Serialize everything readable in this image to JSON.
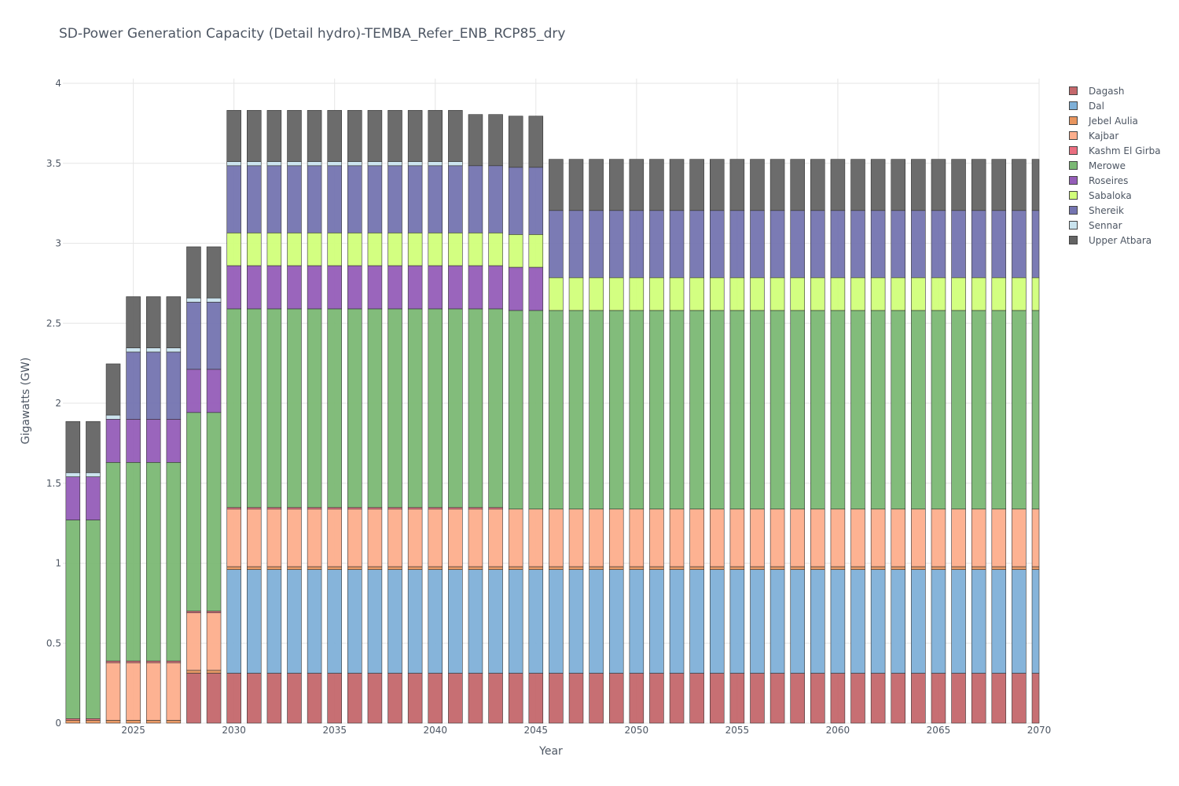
{
  "chart_data": {
    "type": "bar",
    "stacked": true,
    "title": "SD-Power Generation Capacity (Detail hydro)-TEMBA_Refer_ENB_RCP85_dry",
    "xlabel": "Year",
    "ylabel": "Gigawatts (GW)",
    "xlim": [
      2022,
      2070
    ],
    "ylim": [
      0,
      4
    ],
    "x_ticks": [
      "2025",
      "2030",
      "2035",
      "2040",
      "2045",
      "2050",
      "2055",
      "2060",
      "2065",
      "2070"
    ],
    "y_ticks": [
      "0",
      "0.5",
      "1",
      "1.5",
      "2",
      "2.5",
      "3",
      "3.5",
      "4"
    ],
    "grid": true,
    "legend_position": "right",
    "categories": [
      2022,
      2023,
      2024,
      2025,
      2026,
      2027,
      2028,
      2029,
      2030,
      2031,
      2032,
      2033,
      2034,
      2035,
      2036,
      2037,
      2038,
      2039,
      2040,
      2041,
      2042,
      2043,
      2044,
      2045,
      2046,
      2047,
      2048,
      2049,
      2050,
      2051,
      2052,
      2053,
      2054,
      2055,
      2056,
      2057,
      2058,
      2059,
      2060,
      2061,
      2062,
      2063,
      2064,
      2065,
      2066,
      2067,
      2068,
      2069,
      2070
    ],
    "series": [
      {
        "name": "Dagash",
        "color": "#c4676b",
        "values": [
          0,
          0,
          0,
          0,
          0,
          0,
          0.312,
          0.312,
          0.312,
          0.312,
          0.312,
          0.312,
          0.312,
          0.312,
          0.312,
          0.312,
          0.312,
          0.312,
          0.312,
          0.312,
          0.312,
          0.312,
          0.312,
          0.312,
          0.312,
          0.312,
          0.312,
          0.312,
          0.312,
          0.312,
          0.312,
          0.312,
          0.312,
          0.312,
          0.312,
          0.312,
          0.312,
          0.312,
          0.312,
          0.312,
          0.312,
          0.312,
          0.312,
          0.312,
          0.312,
          0.312,
          0.312,
          0.312,
          0.312
        ]
      },
      {
        "name": "Dal",
        "color": "#7fb0d8",
        "values": [
          0,
          0,
          0,
          0,
          0,
          0,
          0,
          0,
          0.648,
          0.648,
          0.648,
          0.648,
          0.648,
          0.648,
          0.648,
          0.648,
          0.648,
          0.648,
          0.648,
          0.648,
          0.648,
          0.648,
          0.648,
          0.648,
          0.648,
          0.648,
          0.648,
          0.648,
          0.648,
          0.648,
          0.648,
          0.648,
          0.648,
          0.648,
          0.648,
          0.648,
          0.648,
          0.648,
          0.648,
          0.648,
          0.648,
          0.648,
          0.648,
          0.648,
          0.648,
          0.648,
          0.648,
          0.648,
          0.648
        ]
      },
      {
        "name": "Jebel Aulia",
        "color": "#e8955e",
        "values": [
          0.018,
          0.018,
          0.018,
          0.018,
          0.018,
          0.018,
          0.018,
          0.018,
          0.018,
          0.018,
          0.018,
          0.018,
          0.018,
          0.018,
          0.018,
          0.018,
          0.018,
          0.018,
          0.018,
          0.018,
          0.018,
          0.018,
          0.018,
          0.018,
          0.018,
          0.018,
          0.018,
          0.018,
          0.018,
          0.018,
          0.018,
          0.018,
          0.018,
          0.018,
          0.018,
          0.018,
          0.018,
          0.018,
          0.018,
          0.018,
          0.018,
          0.018,
          0.018,
          0.018,
          0.018,
          0.018,
          0.018,
          0.018,
          0.018
        ]
      },
      {
        "name": "Kajbar",
        "color": "#fdae8c",
        "values": [
          0,
          0,
          0.36,
          0.36,
          0.36,
          0.36,
          0.36,
          0.36,
          0.36,
          0.36,
          0.36,
          0.36,
          0.36,
          0.36,
          0.36,
          0.36,
          0.36,
          0.36,
          0.36,
          0.36,
          0.36,
          0.36,
          0.36,
          0.36,
          0.36,
          0.36,
          0.36,
          0.36,
          0.36,
          0.36,
          0.36,
          0.36,
          0.36,
          0.36,
          0.36,
          0.36,
          0.36,
          0.36,
          0.36,
          0.36,
          0.36,
          0.36,
          0.36,
          0.36,
          0.36,
          0.36,
          0.36,
          0.36,
          0.36
        ]
      },
      {
        "name": "Kashm El Girba",
        "color": "#ea6e80",
        "values": [
          0.01,
          0.01,
          0.01,
          0.01,
          0.01,
          0.01,
          0.01,
          0.01,
          0.01,
          0.01,
          0.01,
          0.01,
          0.01,
          0.01,
          0.01,
          0.01,
          0.01,
          0.01,
          0.01,
          0.01,
          0.01,
          0.01,
          0,
          0,
          0,
          0,
          0,
          0,
          0,
          0,
          0,
          0,
          0,
          0,
          0,
          0,
          0,
          0,
          0,
          0,
          0,
          0,
          0,
          0,
          0,
          0,
          0,
          0,
          0
        ]
      },
      {
        "name": "Merowe",
        "color": "#7bb874",
        "values": [
          1.242,
          1.242,
          1.242,
          1.242,
          1.242,
          1.242,
          1.242,
          1.242,
          1.242,
          1.242,
          1.242,
          1.242,
          1.242,
          1.242,
          1.242,
          1.242,
          1.242,
          1.242,
          1.242,
          1.242,
          1.242,
          1.242,
          1.242,
          1.242,
          1.242,
          1.242,
          1.242,
          1.242,
          1.242,
          1.242,
          1.242,
          1.242,
          1.242,
          1.242,
          1.242,
          1.242,
          1.242,
          1.242,
          1.242,
          1.242,
          1.242,
          1.242,
          1.242,
          1.242,
          1.242,
          1.242,
          1.242,
          1.242,
          1.242
        ]
      },
      {
        "name": "Roseires",
        "color": "#955db8",
        "values": [
          0.27,
          0.27,
          0.27,
          0.27,
          0.27,
          0.27,
          0.27,
          0.27,
          0.27,
          0.27,
          0.27,
          0.27,
          0.27,
          0.27,
          0.27,
          0.27,
          0.27,
          0.27,
          0.27,
          0.27,
          0.27,
          0.27,
          0.27,
          0.27,
          0,
          0,
          0,
          0,
          0,
          0,
          0,
          0,
          0,
          0,
          0,
          0,
          0,
          0,
          0,
          0,
          0,
          0,
          0,
          0,
          0,
          0,
          0,
          0,
          0
        ]
      },
      {
        "name": "Sabaloka",
        "color": "#d1ff7a",
        "values": [
          0,
          0,
          0,
          0,
          0,
          0,
          0,
          0,
          0.205,
          0.205,
          0.205,
          0.205,
          0.205,
          0.205,
          0.205,
          0.205,
          0.205,
          0.205,
          0.205,
          0.205,
          0.205,
          0.205,
          0.205,
          0.205,
          0.205,
          0.205,
          0.205,
          0.205,
          0.205,
          0.205,
          0.205,
          0.205,
          0.205,
          0.205,
          0.205,
          0.205,
          0.205,
          0.205,
          0.205,
          0.205,
          0.205,
          0.205,
          0.205,
          0.205,
          0.205,
          0.205,
          0.205,
          0.205,
          0.205
        ]
      },
      {
        "name": "Shereik",
        "color": "#7474b0",
        "values": [
          0,
          0,
          0,
          0.42,
          0.42,
          0.42,
          0.42,
          0.42,
          0.42,
          0.42,
          0.42,
          0.42,
          0.42,
          0.42,
          0.42,
          0.42,
          0.42,
          0.42,
          0.42,
          0.42,
          0.42,
          0.42,
          0.42,
          0.42,
          0.42,
          0.42,
          0.42,
          0.42,
          0.42,
          0.42,
          0.42,
          0.42,
          0.42,
          0.42,
          0.42,
          0.42,
          0.42,
          0.42,
          0.42,
          0.42,
          0.42,
          0.42,
          0.42,
          0.42,
          0.42,
          0.42,
          0.42,
          0.42,
          0.42
        ]
      },
      {
        "name": "Sennar",
        "color": "#c9e3ee",
        "values": [
          0.026,
          0.026,
          0.026,
          0.026,
          0.026,
          0.026,
          0.026,
          0.026,
          0.026,
          0.026,
          0.026,
          0.026,
          0.026,
          0.026,
          0.026,
          0.026,
          0.026,
          0.026,
          0.026,
          0.026,
          0,
          0,
          0,
          0,
          0,
          0,
          0,
          0,
          0,
          0,
          0,
          0,
          0,
          0,
          0,
          0,
          0,
          0,
          0,
          0,
          0,
          0,
          0,
          0,
          0,
          0,
          0,
          0,
          0
        ]
      },
      {
        "name": "Upper Atbara",
        "color": "#646464",
        "values": [
          0.32,
          0.32,
          0.32,
          0.32,
          0.32,
          0.32,
          0.32,
          0.32,
          0.32,
          0.32,
          0.32,
          0.32,
          0.32,
          0.32,
          0.32,
          0.32,
          0.32,
          0.32,
          0.32,
          0.32,
          0.32,
          0.32,
          0.32,
          0.32,
          0.32,
          0.32,
          0.32,
          0.32,
          0.32,
          0.32,
          0.32,
          0.32,
          0.32,
          0.32,
          0.32,
          0.32,
          0.32,
          0.32,
          0.32,
          0.32,
          0.32,
          0.32,
          0.32,
          0.32,
          0.32,
          0.32,
          0.32,
          0.32,
          0.32
        ]
      }
    ]
  }
}
